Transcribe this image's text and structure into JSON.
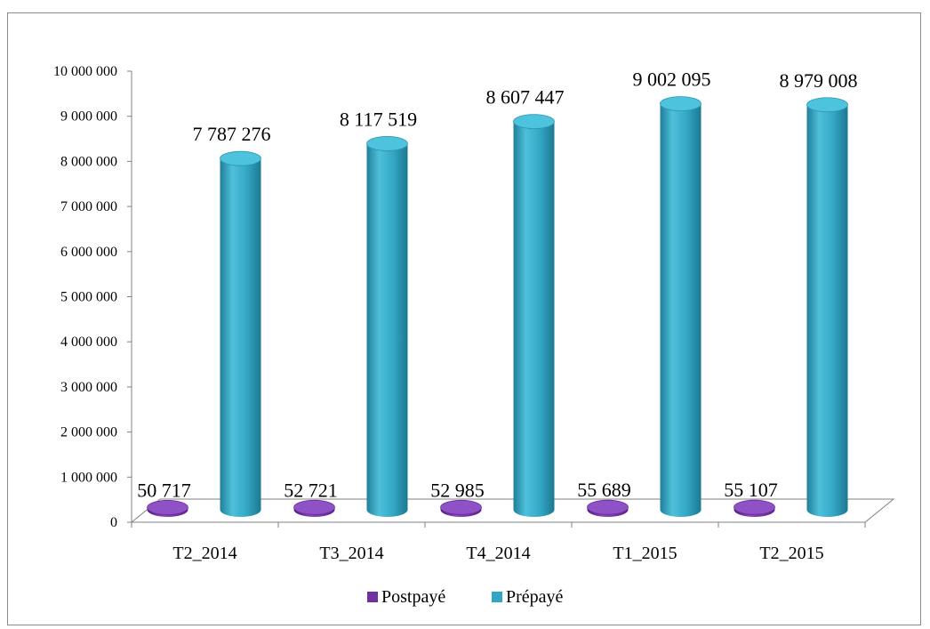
{
  "chart_data": {
    "type": "bar",
    "categories": [
      "T2_2014",
      "T3_2014",
      "T4_2014",
      "T1_2015",
      "T2_2015"
    ],
    "series": [
      {
        "name": "Postpayé",
        "values": [
          50717,
          52721,
          52985,
          55689,
          55107
        ],
        "labels": [
          "50 717",
          "52 721",
          "52 985",
          "55 689",
          "55 107"
        ],
        "color": "#7030a0"
      },
      {
        "name": "Prépayé",
        "values": [
          7787276,
          8117519,
          8607447,
          9002095,
          8979008
        ],
        "labels": [
          "7 787 276",
          "8 117 519",
          "8 607 447",
          "9 002 095",
          "8 979 008"
        ],
        "color": "#31a6c4"
      }
    ],
    "ylim": [
      0,
      10000000
    ],
    "yticks": [
      0,
      1000000,
      2000000,
      3000000,
      4000000,
      5000000,
      6000000,
      7000000,
      8000000,
      9000000,
      10000000
    ],
    "ytick_labels": [
      "0",
      "1 000 000",
      "2 000 000",
      "3 000 000",
      "4 000 000",
      "5 000 000",
      "6 000 000",
      "7 000 000",
      "8 000 000",
      "9 000 000",
      "10 000 000"
    ],
    "grid": false,
    "legend_position": "bottom",
    "style": "3d-cylinder"
  }
}
